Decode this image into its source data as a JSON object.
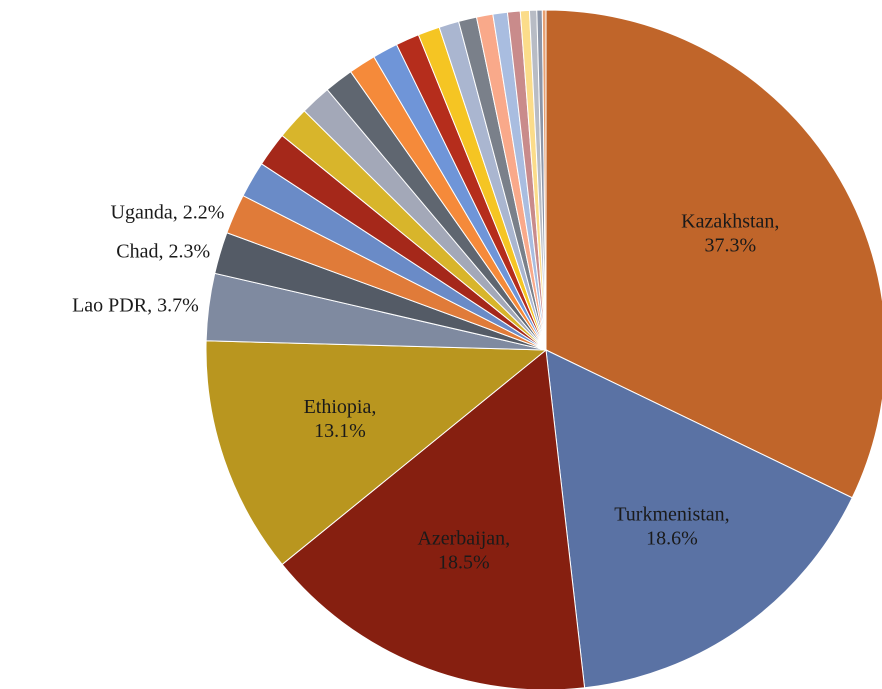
{
  "chart_data": {
    "type": "pie",
    "values": [
      37.3,
      18.6,
      18.5,
      13.1,
      3.7,
      2.3,
      2.2,
      2.0,
      1.9,
      1.8,
      1.7,
      1.6,
      1.5,
      1.4,
      1.3,
      1.2,
      1.1,
      1.0,
      0.9,
      0.8,
      0.7,
      0.5,
      0.4,
      0.3,
      0.2
    ],
    "value_labels": [
      "Kazakhstan, 37.3%",
      "Turkmenistan, 18.6%",
      "Azerbaijan, 18.5%",
      "Ethiopia, 13.1%",
      "Lao PDR, 3.7%",
      "Chad, 2.3%",
      "Uganda, 2.2%",
      null,
      null,
      null,
      null,
      null,
      null,
      null,
      null,
      null,
      null,
      null,
      null,
      null,
      null,
      null,
      null,
      null,
      null
    ],
    "colors": [
      "#c0652a",
      "#5a72a4",
      "#861f10",
      "#b9961f",
      "#7f8aa0",
      "#545b66",
      "#e07b39",
      "#6a8bc7",
      "#a5281a",
      "#d8b52b",
      "#a3a8b8",
      "#5f6670",
      "#f58a3a",
      "#6f95d8",
      "#b52d1c",
      "#f5c523",
      "#aab6d0",
      "#7a808a",
      "#f9a98a",
      "#a9bde0",
      "#c98b8b",
      "#fbdc8a",
      "#b8bcc5",
      "#8d96a8",
      "#e9a070"
    ],
    "start_angle": 0,
    "direction": "clockwise"
  }
}
